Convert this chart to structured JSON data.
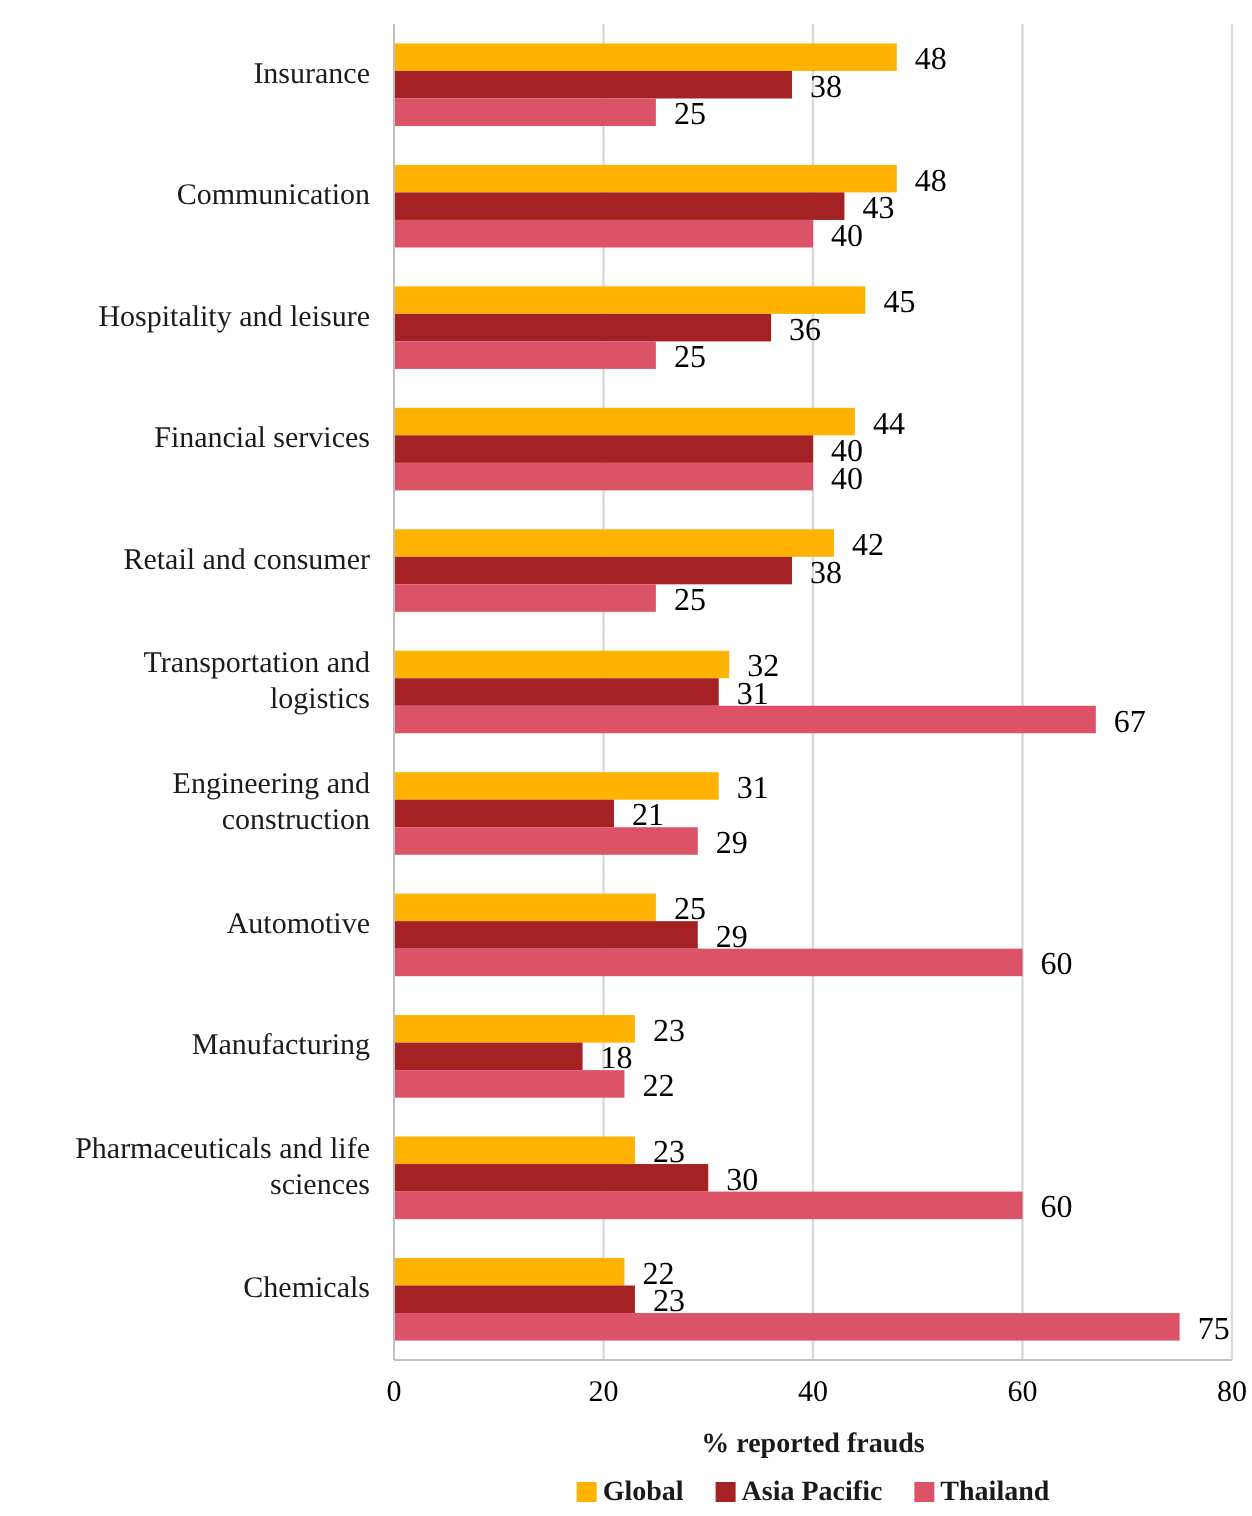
{
  "chart_data": {
    "type": "bar",
    "orientation": "horizontal",
    "categories": [
      "Insurance",
      "Communication",
      "Hospitality and leisure",
      "Financial services",
      "Retail and consumer",
      "Transportation and logistics",
      "Engineering and construction",
      "Automotive",
      "Manufacturing",
      "Pharmaceuticals and life sciences",
      "Chemicals"
    ],
    "series": [
      {
        "name": "Global",
        "color": "#ffb300",
        "values": [
          48,
          48,
          45,
          44,
          42,
          32,
          31,
          25,
          23,
          23,
          22
        ]
      },
      {
        "name": "Asia Pacific",
        "color": "#a52224",
        "values": [
          38,
          43,
          36,
          40,
          38,
          31,
          21,
          29,
          18,
          30,
          23
        ]
      },
      {
        "name": "Thailand",
        "color": "#dc5368",
        "values": [
          25,
          40,
          25,
          40,
          25,
          67,
          29,
          60,
          22,
          60,
          75
        ]
      }
    ],
    "xlabel": "% reported frauds",
    "xlim": [
      0,
      80
    ],
    "xticks": [
      0,
      20,
      40,
      60,
      80
    ],
    "grid": "x",
    "legend": "bottom",
    "data_labels": true
  }
}
